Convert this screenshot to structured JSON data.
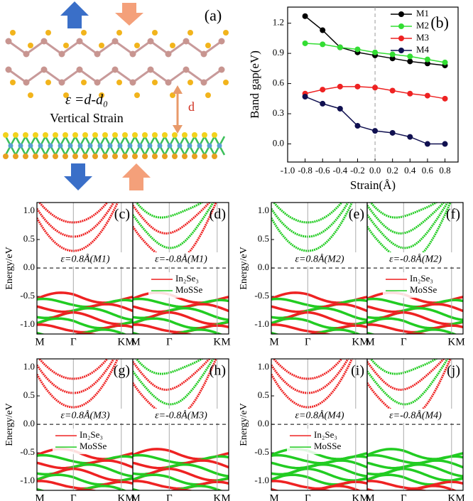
{
  "panel_a": {
    "label": "(a)",
    "equation": "ε =d-d₀",
    "caption": "Vertical Strain",
    "distance": "d"
  },
  "chart_data": {
    "type": "line",
    "panel_label": "(b)",
    "x": [
      -0.8,
      -0.6,
      -0.4,
      -0.2,
      0,
      0.2,
      0.4,
      0.6,
      0.8
    ],
    "xlim": [
      -1.0,
      0.95
    ],
    "xticks": [
      {
        "value": -1.0,
        "label": "-1.0"
      },
      -0.8,
      -0.6,
      -0.4,
      -0.2,
      {
        "value": 0,
        "label": "0.0"
      },
      0.2,
      0.4,
      0.6,
      0.8
    ],
    "ylim": [
      -0.18,
      1.36
    ],
    "yticks": [
      {
        "value": 0,
        "label": "0.0"
      },
      0.3,
      0.6,
      0.9,
      1.2
    ],
    "xlabel": "Strain(Å)",
    "ylabel": "Band gap(eV)",
    "reference_x": 0,
    "legend": "upper right",
    "series": [
      {
        "name": "M1",
        "color": "#000000",
        "values": [
          1.27,
          1.13,
          0.96,
          0.91,
          0.88,
          0.85,
          0.82,
          0.8,
          0.78
        ]
      },
      {
        "name": "M2",
        "color": "#33dd33",
        "values": [
          1.0,
          0.99,
          0.96,
          0.94,
          0.91,
          0.89,
          0.87,
          0.84,
          0.81
        ]
      },
      {
        "name": "M3",
        "color": "#ee2222",
        "values": [
          0.5,
          0.54,
          0.57,
          0.57,
          0.56,
          0.53,
          0.5,
          0.48,
          0.45
        ]
      },
      {
        "name": "M4",
        "color": "#101050",
        "values": [
          0.47,
          0.4,
          0.35,
          0.18,
          0.13,
          0.11,
          0.07,
          0.0,
          0.0
        ]
      }
    ]
  },
  "band_panels": {
    "ylabel": "Energy/eV",
    "ylim": [
      -1.16,
      1.15
    ],
    "yticks": [
      {
        "value": 1.0,
        "label": "1.0"
      },
      0.5,
      {
        "value": 0,
        "label": "0.0"
      },
      -0.5,
      {
        "value": -1.0,
        "label": "-1.0"
      }
    ],
    "kpath": [
      "M",
      "Γ",
      "K",
      "M"
    ],
    "legend": [
      {
        "name": "In₂Se₃",
        "color": "#ee2222"
      },
      {
        "name": "MoSSe",
        "color": "#22cc22"
      }
    ],
    "pairs": [
      {
        "labels": [
          "(c)",
          "(d)"
        ],
        "annotations": [
          "ε=0.8Å(M1)",
          "ε=-0.8Å(M1)"
        ],
        "legend_in": "right"
      },
      {
        "labels": [
          "(e)",
          "(f)"
        ],
        "annotations": [
          "ε=0.8Å(M2)",
          "ε=-0.8Å(M2)"
        ],
        "legend_in": "right"
      },
      {
        "labels": [
          "(g)",
          "(h)"
        ],
        "annotations": [
          "ε=0.8Å(M3)",
          "ε=-0.8Å(M3)"
        ],
        "legend_in": "left"
      },
      {
        "labels": [
          "(i)",
          "(j)"
        ],
        "annotations": [
          "ε=0.8Å(M4)",
          "ε=-0.8Å(M4)"
        ],
        "legend_in": "left"
      }
    ]
  }
}
